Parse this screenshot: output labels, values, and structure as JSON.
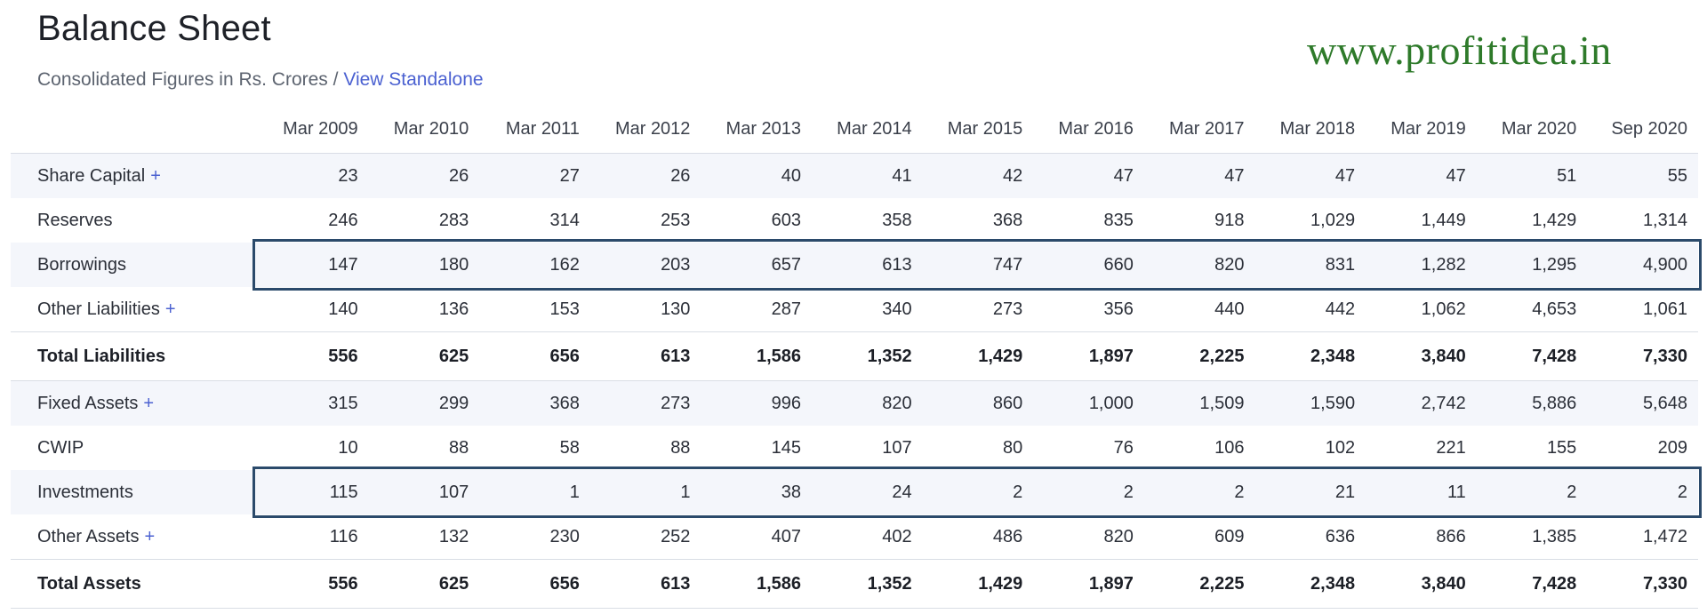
{
  "header": {
    "title": "Balance Sheet",
    "subtitle": "Consolidated Figures in Rs. Crores / ",
    "link": "View Standalone",
    "watermark": "www.profitidea.in"
  },
  "columns": [
    "Mar 2009",
    "Mar 2010",
    "Mar 2011",
    "Mar 2012",
    "Mar 2013",
    "Mar 2014",
    "Mar 2015",
    "Mar 2016",
    "Mar 2017",
    "Mar 2018",
    "Mar 2019",
    "Mar 2020",
    "Sep 2020"
  ],
  "rows": [
    {
      "label": "Share Capital",
      "expandable": true,
      "bold": false,
      "values": [
        "23",
        "26",
        "27",
        "26",
        "40",
        "41",
        "42",
        "47",
        "47",
        "47",
        "47",
        "51",
        "55"
      ]
    },
    {
      "label": "Reserves",
      "expandable": false,
      "bold": false,
      "values": [
        "246",
        "283",
        "314",
        "253",
        "603",
        "358",
        "368",
        "835",
        "918",
        "1,029",
        "1,449",
        "1,429",
        "1,314"
      ]
    },
    {
      "label": "Borrowings",
      "expandable": false,
      "bold": false,
      "values": [
        "147",
        "180",
        "162",
        "203",
        "657",
        "613",
        "747",
        "660",
        "820",
        "831",
        "1,282",
        "1,295",
        "4,900"
      ]
    },
    {
      "label": "Other Liabilities",
      "expandable": true,
      "bold": false,
      "values": [
        "140",
        "136",
        "153",
        "130",
        "287",
        "340",
        "273",
        "356",
        "440",
        "442",
        "1,062",
        "4,653",
        "1,061"
      ]
    },
    {
      "label": "Total Liabilities",
      "expandable": false,
      "bold": true,
      "values": [
        "556",
        "625",
        "656",
        "613",
        "1,586",
        "1,352",
        "1,429",
        "1,897",
        "2,225",
        "2,348",
        "3,840",
        "7,428",
        "7,330"
      ]
    },
    {
      "label": "Fixed Assets",
      "expandable": true,
      "bold": false,
      "values": [
        "315",
        "299",
        "368",
        "273",
        "996",
        "820",
        "860",
        "1,000",
        "1,509",
        "1,590",
        "2,742",
        "5,886",
        "5,648"
      ]
    },
    {
      "label": "CWIP",
      "expandable": false,
      "bold": false,
      "values": [
        "10",
        "88",
        "58",
        "88",
        "145",
        "107",
        "80",
        "76",
        "106",
        "102",
        "221",
        "155",
        "209"
      ]
    },
    {
      "label": "Investments",
      "expandable": false,
      "bold": false,
      "values": [
        "115",
        "107",
        "1",
        "1",
        "38",
        "24",
        "2",
        "2",
        "2",
        "21",
        "11",
        "2",
        "2"
      ]
    },
    {
      "label": "Other Assets",
      "expandable": true,
      "bold": false,
      "values": [
        "116",
        "132",
        "230",
        "252",
        "407",
        "402",
        "486",
        "820",
        "609",
        "636",
        "866",
        "1,385",
        "1,472"
      ]
    },
    {
      "label": "Total Assets",
      "expandable": false,
      "bold": true,
      "values": [
        "556",
        "625",
        "656",
        "613",
        "1,586",
        "1,352",
        "1,429",
        "1,897",
        "2,225",
        "2,348",
        "3,840",
        "7,428",
        "7,330"
      ]
    }
  ],
  "highlights": [
    "Borrowings",
    "Investments"
  ],
  "plus_symbol": "+"
}
